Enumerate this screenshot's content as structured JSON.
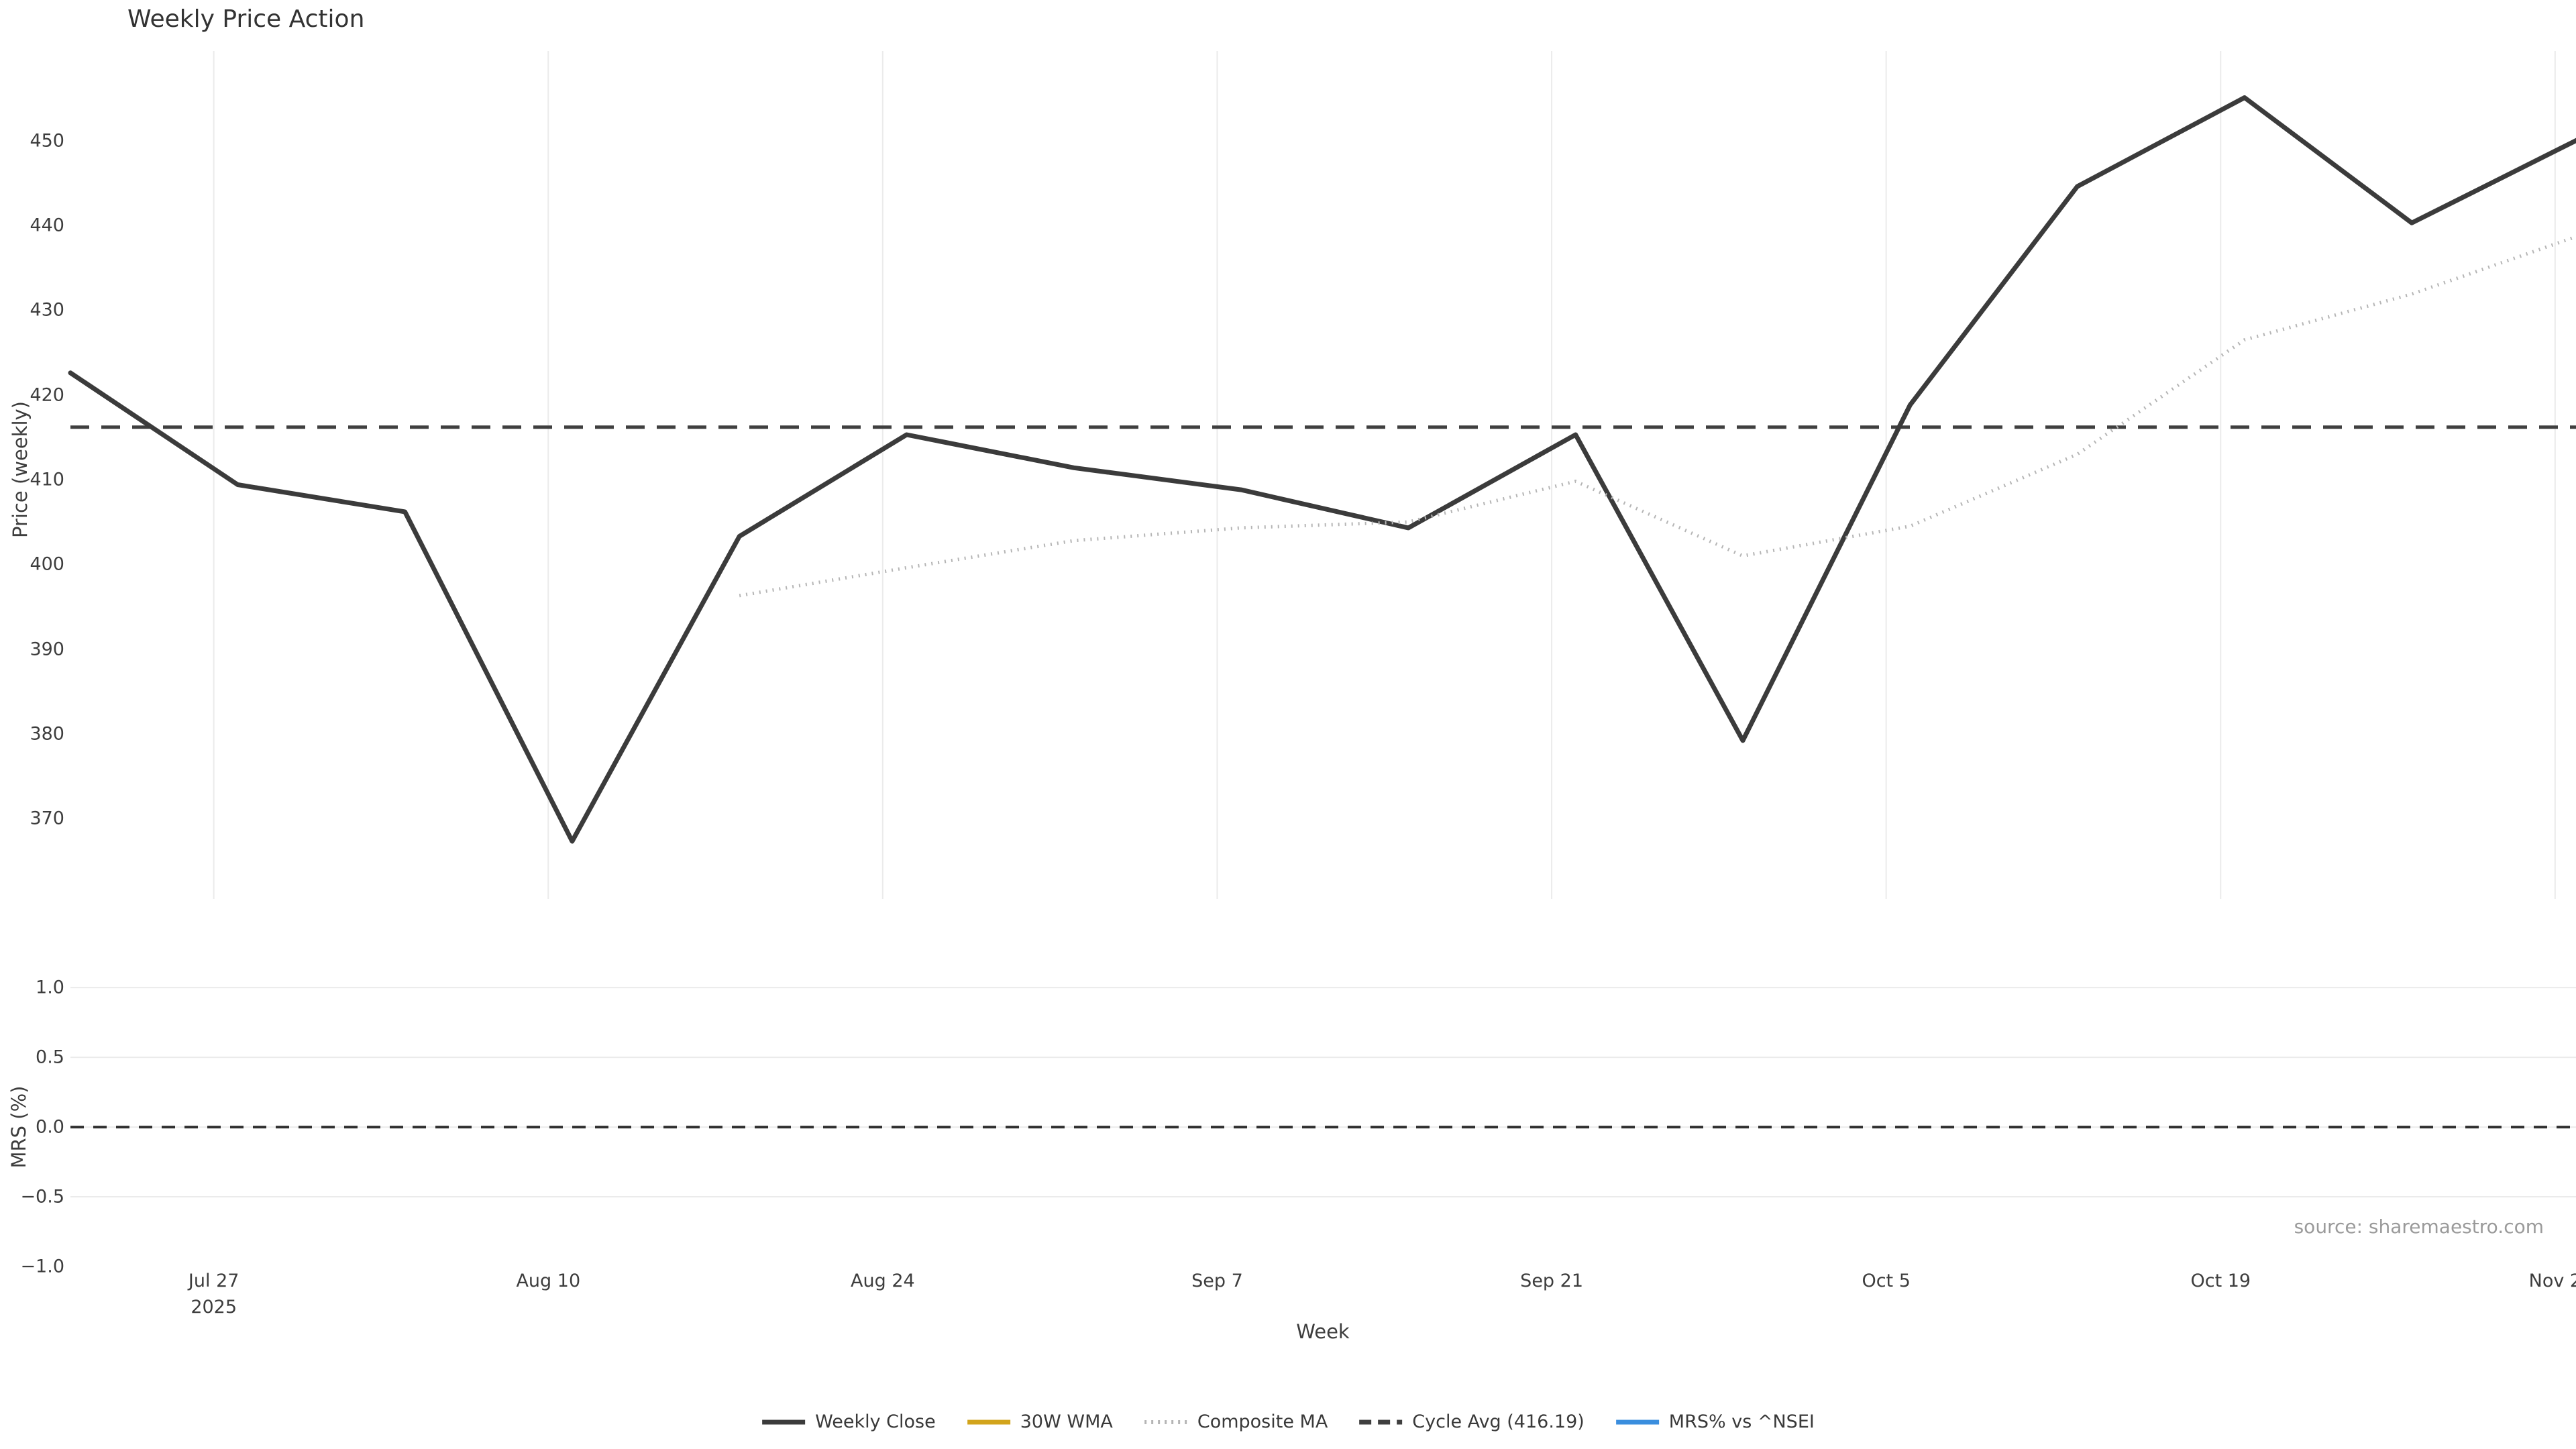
{
  "title": "Weekly Price Action",
  "axes": {
    "x_label": "Week",
    "price_axis_label": "Price (weekly)",
    "mrs_axis_label": "MRS (%)"
  },
  "source_note": "source: sharemaestro.com",
  "colors": {
    "background": "#ffffff",
    "weekly_close": "#3b3b3b",
    "wma_30w": "#d2a41c",
    "composite_ma": "#b5b5b5",
    "cycle_avg": "#3f3f3f",
    "mrs": "#3a8ede",
    "gridline": "#ebebeb",
    "tick_text": "#3d3d3d",
    "source_text": "#9a9a9a"
  },
  "legend": [
    {
      "label": "Weekly Close",
      "style": "solid",
      "color": "#3b3b3b"
    },
    {
      "label": "30W WMA",
      "style": "solid",
      "color": "#d2a41c"
    },
    {
      "label": "Composite MA",
      "style": "dotted",
      "color": "#b5b5b5"
    },
    {
      "label": "Cycle Avg (416.19)",
      "style": "dashed",
      "color": "#3f3f3f"
    },
    {
      "label": "MRS% vs ^NSEI",
      "style": "solid",
      "color": "#3a8ede"
    }
  ],
  "chart_data": {
    "type": "line",
    "title": "Weekly Price Action",
    "xlabel": "Week",
    "ylabel_top": "Price (weekly)",
    "ylabel_bottom": "MRS (%)",
    "x": [
      "Jul 21",
      "Jul 28",
      "Aug 4",
      "Aug 11",
      "Aug 18",
      "Aug 25",
      "Sep 1",
      "Sep 8",
      "Sep 15",
      "Sep 22",
      "Sep 29",
      "Oct 6",
      "Oct 13",
      "Oct 20",
      "Oct 27",
      "Nov 3"
    ],
    "x_tick_labels": [
      {
        "label": "Jul 27",
        "sub": "2025"
      },
      {
        "label": "Aug 10"
      },
      {
        "label": "Aug 24"
      },
      {
        "label": "Sep 7"
      },
      {
        "label": "Sep 21"
      },
      {
        "label": "Oct 5"
      },
      {
        "label": "Oct 19"
      },
      {
        "label": "Nov 2"
      }
    ],
    "y_ticks_top": [
      "450",
      "440",
      "430",
      "420",
      "410",
      "400",
      "390",
      "380",
      "370"
    ],
    "y_ticks_bottom": [
      "1.0",
      "0.5",
      "0.0",
      "−0.5",
      "−1.0"
    ],
    "ylim_top": [
      360.5,
      460.6
    ],
    "ylim_bottom": [
      -1.0,
      1.15
    ],
    "grid": {
      "price_panel": "vertical-only",
      "mrs_panel": "horizontal-only"
    },
    "legend_position": "bottom-center",
    "cycle_avg": 416.19,
    "mrs_zero_line": 0.0,
    "series": [
      {
        "name": "Weekly Close",
        "panel": "price",
        "line": "solid",
        "color": "#3b3b3b",
        "values": [
          422.6,
          409.4,
          406.2,
          367.3,
          403.3,
          415.3,
          411.4,
          408.8,
          404.3,
          415.3,
          379.2,
          418.8,
          444.6,
          455.1,
          440.3,
          450.2
        ]
      },
      {
        "name": "30W WMA",
        "panel": "price",
        "line": "solid",
        "color": "#d2a41c",
        "values": []
      },
      {
        "name": "Composite MA",
        "panel": "price",
        "line": "dotted",
        "color": "#b5b5b5",
        "values": [
          null,
          null,
          null,
          null,
          396.3,
          399.6,
          402.8,
          404.3,
          405.0,
          409.8,
          401.0,
          404.5,
          413.0,
          426.5,
          431.9,
          438.8
        ]
      },
      {
        "name": "Cycle Avg (416.19)",
        "panel": "price",
        "line": "dashed",
        "color": "#3f3f3f",
        "constant": 416.19
      },
      {
        "name": "MRS% vs ^NSEI",
        "panel": "mrs",
        "line": "solid",
        "color": "#3a8ede",
        "values": []
      }
    ]
  }
}
